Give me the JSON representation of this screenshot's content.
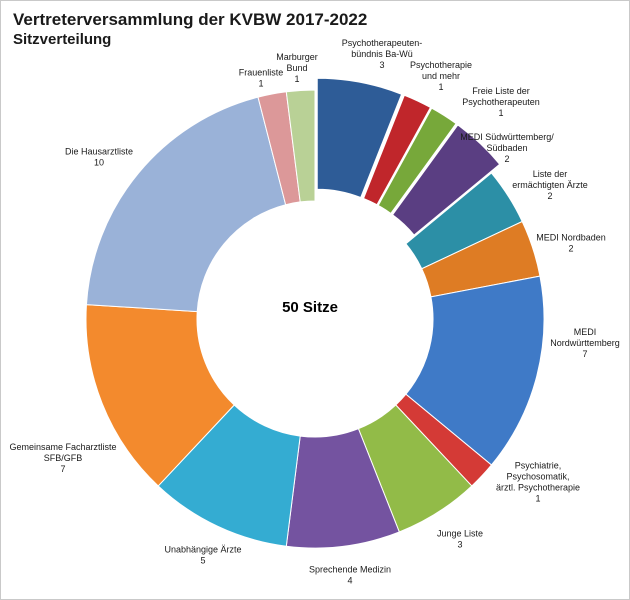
{
  "chart_data": {
    "type": "pie",
    "title": "Vertreterversammlung der KVBW 2017-2022",
    "subtitle": "Sitzverteilung",
    "center_label": "50 Sitze",
    "total": 50,
    "slices": [
      {
        "label": "Psychotherapeuten-\nbündnis Ba-Wü",
        "value": 3,
        "color": "#2e5c97",
        "exploded": true
      },
      {
        "label": "Psychotherapie\nund mehr",
        "value": 1,
        "color": "#c0262b",
        "exploded": true
      },
      {
        "label": "Freie Liste der\nPsychotherapeuten",
        "value": 1,
        "color": "#77a83a",
        "exploded": true
      },
      {
        "label": "MEDI Südwürttemberg/\nSüdbaden",
        "value": 2,
        "color": "#5a3e82",
        "exploded": true
      },
      {
        "label": "Liste der\nermächtigten Ärzte",
        "value": 2,
        "color": "#2c8fa6",
        "exploded": false
      },
      {
        "label": "MEDI Nordbaden",
        "value": 2,
        "color": "#de7c24",
        "exploded": false
      },
      {
        "label": "MEDI\nNordwürttemberg",
        "value": 7,
        "color": "#3f7ac7",
        "exploded": false
      },
      {
        "label": "Psychiatrie,\nPsychosomatik,\närztl. Psychotherapie",
        "value": 1,
        "color": "#d43a36",
        "exploded": false
      },
      {
        "label": "Junge Liste",
        "value": 3,
        "color": "#92bb48",
        "exploded": false
      },
      {
        "label": "Sprechende Medizin",
        "value": 4,
        "color": "#7453a0",
        "exploded": false
      },
      {
        "label": "Unabhängige Ärzte",
        "value": 5,
        "color": "#34acd2",
        "exploded": false
      },
      {
        "label": "Gemeinsame Facharztliste\nSFB/GFB",
        "value": 7,
        "color": "#f38a2d",
        "exploded": false
      },
      {
        "label": "Die Hausarztliste",
        "value": 10,
        "color": "#9ab2d8",
        "exploded": false
      },
      {
        "label": "Frauenliste",
        "value": 1,
        "color": "#dc9899",
        "exploded": false
      },
      {
        "label": "Marburger\nBund",
        "value": 1,
        "color": "#b9d196",
        "exploded": false
      }
    ]
  }
}
